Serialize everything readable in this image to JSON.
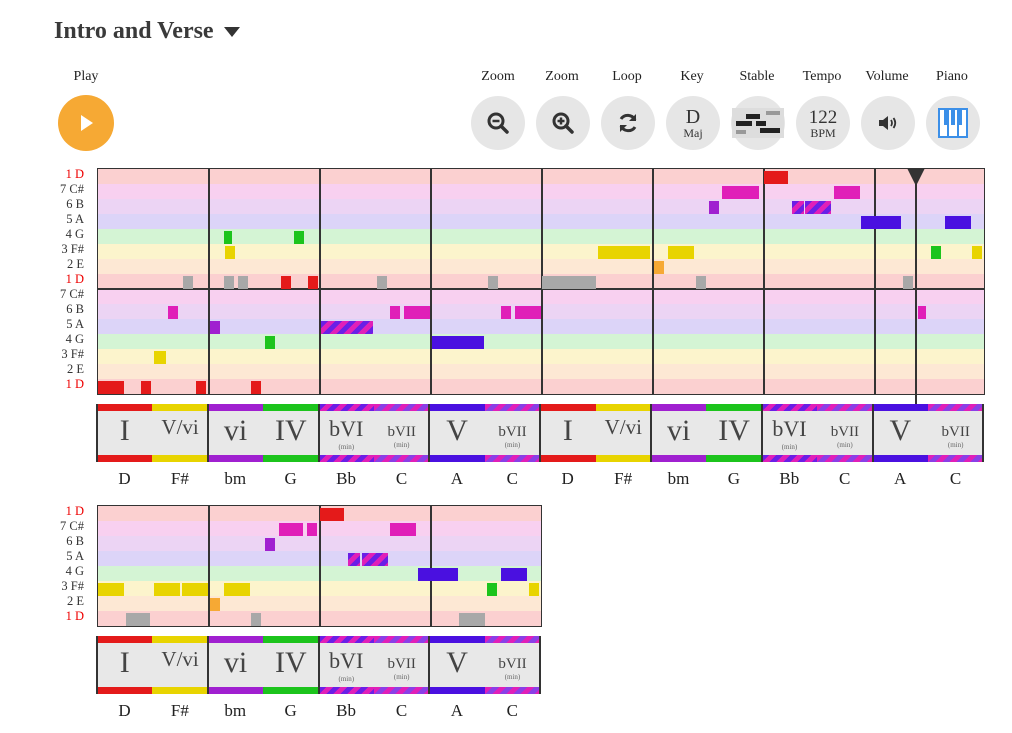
{
  "title": "Intro and Verse",
  "controls": {
    "play": "Play",
    "zoom_out": "Zoom",
    "zoom_in": "Zoom",
    "loop": "Loop",
    "key": "Key",
    "stable": "Stable",
    "tempo": "Tempo",
    "volume": "Volume",
    "piano": "Piano"
  },
  "key_value": {
    "note": "D",
    "mode": "Maj"
  },
  "tempo_value": {
    "bpm": "122",
    "unit": "BPM"
  },
  "note_labels_top": [
    "1 D",
    "7 C#",
    "6 B",
    "5 A",
    "4 G",
    "3 F#",
    "2 E",
    "1 D",
    "7 C#",
    "6 B",
    "5 A",
    "4 G",
    "3 F#",
    "2 E",
    "1 D"
  ],
  "note_labels_bottom": [
    "1 D",
    "7 C#",
    "6 B",
    "5 A",
    "4 G",
    "3 F#",
    "2 E",
    "1 D"
  ],
  "chords_row1": [
    {
      "roman": "I",
      "sub": "",
      "name": "D",
      "color": "#e41a1a"
    },
    {
      "roman": "V/vi",
      "sub": "",
      "name": "F#",
      "color": "#e8d400"
    },
    {
      "roman": "vi",
      "sub": "",
      "name": "bm",
      "color": "#a020d0"
    },
    {
      "roman": "IV",
      "sub": "",
      "name": "G",
      "color": "#1cc41c"
    },
    {
      "roman": "bVI",
      "sub": "(min)",
      "name": "Bb",
      "color": "stripe"
    },
    {
      "roman": "bVII",
      "sub": "(min)",
      "name": "C",
      "color": "stripe2"
    },
    {
      "roman": "V",
      "sub": "",
      "name": "A",
      "color": "#4a10e0"
    },
    {
      "roman": "bVII",
      "sub": "(min)",
      "name": "C",
      "color": "stripe2"
    },
    {
      "roman": "I",
      "sub": "",
      "name": "D",
      "color": "#e41a1a"
    },
    {
      "roman": "V/vi",
      "sub": "",
      "name": "F#",
      "color": "#e8d400"
    },
    {
      "roman": "vi",
      "sub": "",
      "name": "bm",
      "color": "#a020d0"
    },
    {
      "roman": "IV",
      "sub": "",
      "name": "G",
      "color": "#1cc41c"
    },
    {
      "roman": "bVI",
      "sub": "(min)",
      "name": "Bb",
      "color": "stripe"
    },
    {
      "roman": "bVII",
      "sub": "(min)",
      "name": "C",
      "color": "stripe2"
    },
    {
      "roman": "V",
      "sub": "",
      "name": "A",
      "color": "#4a10e0"
    },
    {
      "roman": "bVII",
      "sub": "(min)",
      "name": "C",
      "color": "stripe2"
    }
  ],
  "chords_row2": [
    {
      "roman": "I",
      "sub": "",
      "name": "D",
      "color": "#e41a1a"
    },
    {
      "roman": "V/vi",
      "sub": "",
      "name": "F#",
      "color": "#e8d400"
    },
    {
      "roman": "vi",
      "sub": "",
      "name": "bm",
      "color": "#a020d0"
    },
    {
      "roman": "IV",
      "sub": "",
      "name": "G",
      "color": "#1cc41c"
    },
    {
      "roman": "bVI",
      "sub": "(min)",
      "name": "Bb",
      "color": "stripe"
    },
    {
      "roman": "bVII",
      "sub": "(min)",
      "name": "C",
      "color": "stripe2"
    },
    {
      "roman": "V",
      "sub": "",
      "name": "A",
      "color": "#4a10e0"
    },
    {
      "roman": "bVII",
      "sub": "(min)",
      "name": "C",
      "color": "stripe2"
    }
  ],
  "colors": {
    "accent": "#f6a934",
    "lane_D": "#fbd0d0",
    "lane_Cs": "#f8d0f0",
    "lane_B": "#ecd4f4",
    "lane_A": "#dcd4f8",
    "lane_G": "#d4f4d4",
    "lane_Fs": "#fcf4cc",
    "lane_E": "#fde8d4"
  }
}
